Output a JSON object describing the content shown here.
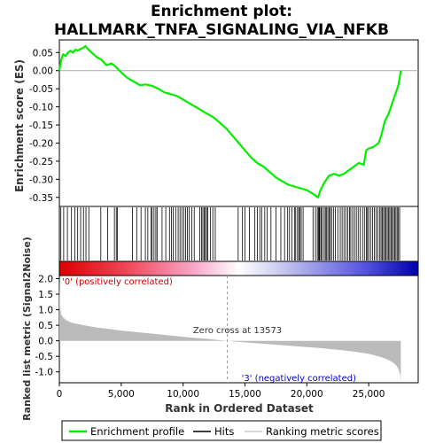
{
  "chart_data": [
    {
      "panel": "enrichment",
      "type": "line",
      "title_line1": "Enrichment plot:",
      "title_line2": "HALLMARK_TNFA_SIGNALING_VIA_NFKB",
      "ylabel": "Enrichment score (ES)",
      "ylim": [
        -0.375,
        0.085
      ],
      "yticks": [
        0.05,
        0.0,
        -0.05,
        -0.1,
        -0.15,
        -0.2,
        -0.25,
        -0.3,
        -0.35
      ],
      "ytick_labels": [
        "0.05",
        "0.00",
        "-0.05",
        "-0.10",
        "-0.15",
        "-0.20",
        "-0.25",
        "-0.30",
        "-0.35"
      ],
      "series": [
        {
          "name": "Enrichment profile",
          "color": "#00ee00",
          "x": [
            0,
            150,
            300,
            500,
            700,
            900,
            1100,
            1300,
            1500,
            1700,
            1900,
            2100,
            2300,
            2600,
            3000,
            3400,
            3800,
            4200,
            4600,
            5000,
            5500,
            6000,
            6500,
            7000,
            7500,
            8000,
            8500,
            9000,
            9500,
            10000,
            10500,
            11000,
            11500,
            12000,
            12500,
            13000,
            13500,
            14000,
            14500,
            15000,
            15500,
            16000,
            16500,
            17000,
            17500,
            18000,
            18500,
            19000,
            19500,
            20000,
            20500,
            20900,
            21100,
            21400,
            21800,
            22200,
            22600,
            23000,
            23400,
            23800,
            24200,
            24600,
            24800,
            25000,
            25400,
            25800,
            26000,
            26300,
            26600,
            26900,
            27200,
            27400,
            27600
          ],
          "y": [
            0.0,
            0.03,
            0.045,
            0.04,
            0.05,
            0.055,
            0.05,
            0.058,
            0.055,
            0.06,
            0.062,
            0.068,
            0.06,
            0.05,
            0.038,
            0.03,
            0.015,
            0.02,
            0.01,
            -0.005,
            -0.02,
            -0.03,
            -0.04,
            -0.038,
            -0.042,
            -0.05,
            -0.06,
            -0.065,
            -0.07,
            -0.08,
            -0.09,
            -0.1,
            -0.11,
            -0.12,
            -0.13,
            -0.145,
            -0.16,
            -0.18,
            -0.2,
            -0.22,
            -0.24,
            -0.255,
            -0.265,
            -0.28,
            -0.295,
            -0.305,
            -0.315,
            -0.32,
            -0.325,
            -0.33,
            -0.34,
            -0.35,
            -0.33,
            -0.31,
            -0.29,
            -0.285,
            -0.29,
            -0.285,
            -0.275,
            -0.265,
            -0.255,
            -0.26,
            -0.22,
            -0.215,
            -0.21,
            -0.2,
            -0.18,
            -0.14,
            -0.12,
            -0.09,
            -0.06,
            -0.04,
            0.0
          ]
        }
      ],
      "zero_line_color": "#aaaaaa"
    },
    {
      "panel": "hits",
      "type": "scatter",
      "legend_label": "Hits",
      "color": "#000000",
      "x": [
        120,
        350,
        650,
        980,
        1250,
        1480,
        1720,
        1950,
        2150,
        2380,
        3350,
        3900,
        4450,
        4600,
        4700,
        5900,
        6250,
        6600,
        6950,
        7150,
        7400,
        7500,
        7650,
        7800,
        7900,
        8300,
        8600,
        8900,
        9050,
        9200,
        9400,
        9600,
        9750,
        9900,
        10050,
        10200,
        10350,
        10500,
        10700,
        10900,
        11350,
        11500,
        11600,
        11700,
        11800,
        11900,
        12000,
        12200,
        12400,
        12600,
        14450,
        14800,
        15000,
        15350,
        15800,
        16000,
        16200,
        16350,
        16600,
        16800,
        17100,
        17500,
        17900,
        18200,
        18450,
        18600,
        18800,
        19000,
        19100,
        19250,
        19350,
        19450,
        19550,
        19700,
        20500,
        20700,
        20850,
        20950,
        21000,
        21050,
        21150,
        21250,
        21400,
        21500,
        21600,
        21700,
        21800,
        21900,
        22000,
        22150,
        22300,
        22500,
        22700,
        22850,
        23000,
        23150,
        23300,
        23450,
        23550,
        23700,
        23850,
        24000,
        24150,
        24300,
        24500,
        24650,
        24800,
        24900,
        25000,
        25150,
        25300,
        25450,
        25600,
        25750,
        25900,
        26000,
        26100,
        26200,
        26300,
        26400,
        26500,
        26600,
        26700,
        26800,
        26900,
        27000,
        27100,
        27200,
        27300,
        27400,
        27500
      ]
    },
    {
      "panel": "rank_bar",
      "type": "heatmap",
      "description_colors": [
        "#dd0000",
        "#ffffff",
        "#0000cc"
      ]
    },
    {
      "panel": "ranked_metric",
      "type": "area",
      "ylabel": "Ranked list metric (Signal2Noise)",
      "xlabel": "Rank in Ordered Dataset",
      "xlim": [
        0,
        29000
      ],
      "xticks": [
        0,
        5000,
        10000,
        15000,
        20000,
        25000
      ],
      "xtick_labels": [
        "0",
        "5,000",
        "10,000",
        "15,000",
        "20,000",
        "25,000"
      ],
      "ylim": [
        -1.35,
        2.1
      ],
      "yticks": [
        2.0,
        1.5,
        1.0,
        0.5,
        0.0,
        -0.5,
        -1.0
      ],
      "ytick_labels": [
        "2.0",
        "1.5",
        "1.0",
        "0.5",
        "0.0",
        "-0.5",
        "-1.0"
      ],
      "fill_color": "#bbbbbb",
      "x": [
        0,
        50,
        150,
        300,
        600,
        1000,
        2000,
        3000,
        4000,
        5000,
        6000,
        7000,
        8000,
        9000,
        10000,
        11000,
        12000,
        13000,
        13573,
        14000,
        15000,
        16000,
        17000,
        18000,
        19000,
        20000,
        21000,
        22000,
        23000,
        24000,
        25000,
        25800,
        26400,
        26900,
        27200,
        27400,
        27550,
        27600
      ],
      "values": [
        2.0,
        1.1,
        0.85,
        0.75,
        0.65,
        0.58,
        0.5,
        0.43,
        0.38,
        0.33,
        0.29,
        0.25,
        0.21,
        0.17,
        0.13,
        0.09,
        0.06,
        0.02,
        0.0,
        -0.02,
        -0.05,
        -0.08,
        -0.11,
        -0.14,
        -0.17,
        -0.2,
        -0.23,
        -0.27,
        -0.31,
        -0.36,
        -0.42,
        -0.5,
        -0.58,
        -0.68,
        -0.78,
        -0.9,
        -1.1,
        -1.3
      ],
      "positive_label": "'0' (positively correlated)",
      "positive_color": "#cc0000",
      "negative_label": "'3' (negatively correlated)",
      "negative_color": "#0000cc",
      "zero_cross_label": "Zero cross at 13573",
      "zero_cross_x": 13573
    }
  ],
  "legend": {
    "items": [
      {
        "label": "Enrichment profile",
        "color": "#00ee00"
      },
      {
        "label": "Hits",
        "color": "#000000"
      },
      {
        "label": "Ranking metric scores",
        "color": "#cccccc"
      }
    ]
  }
}
